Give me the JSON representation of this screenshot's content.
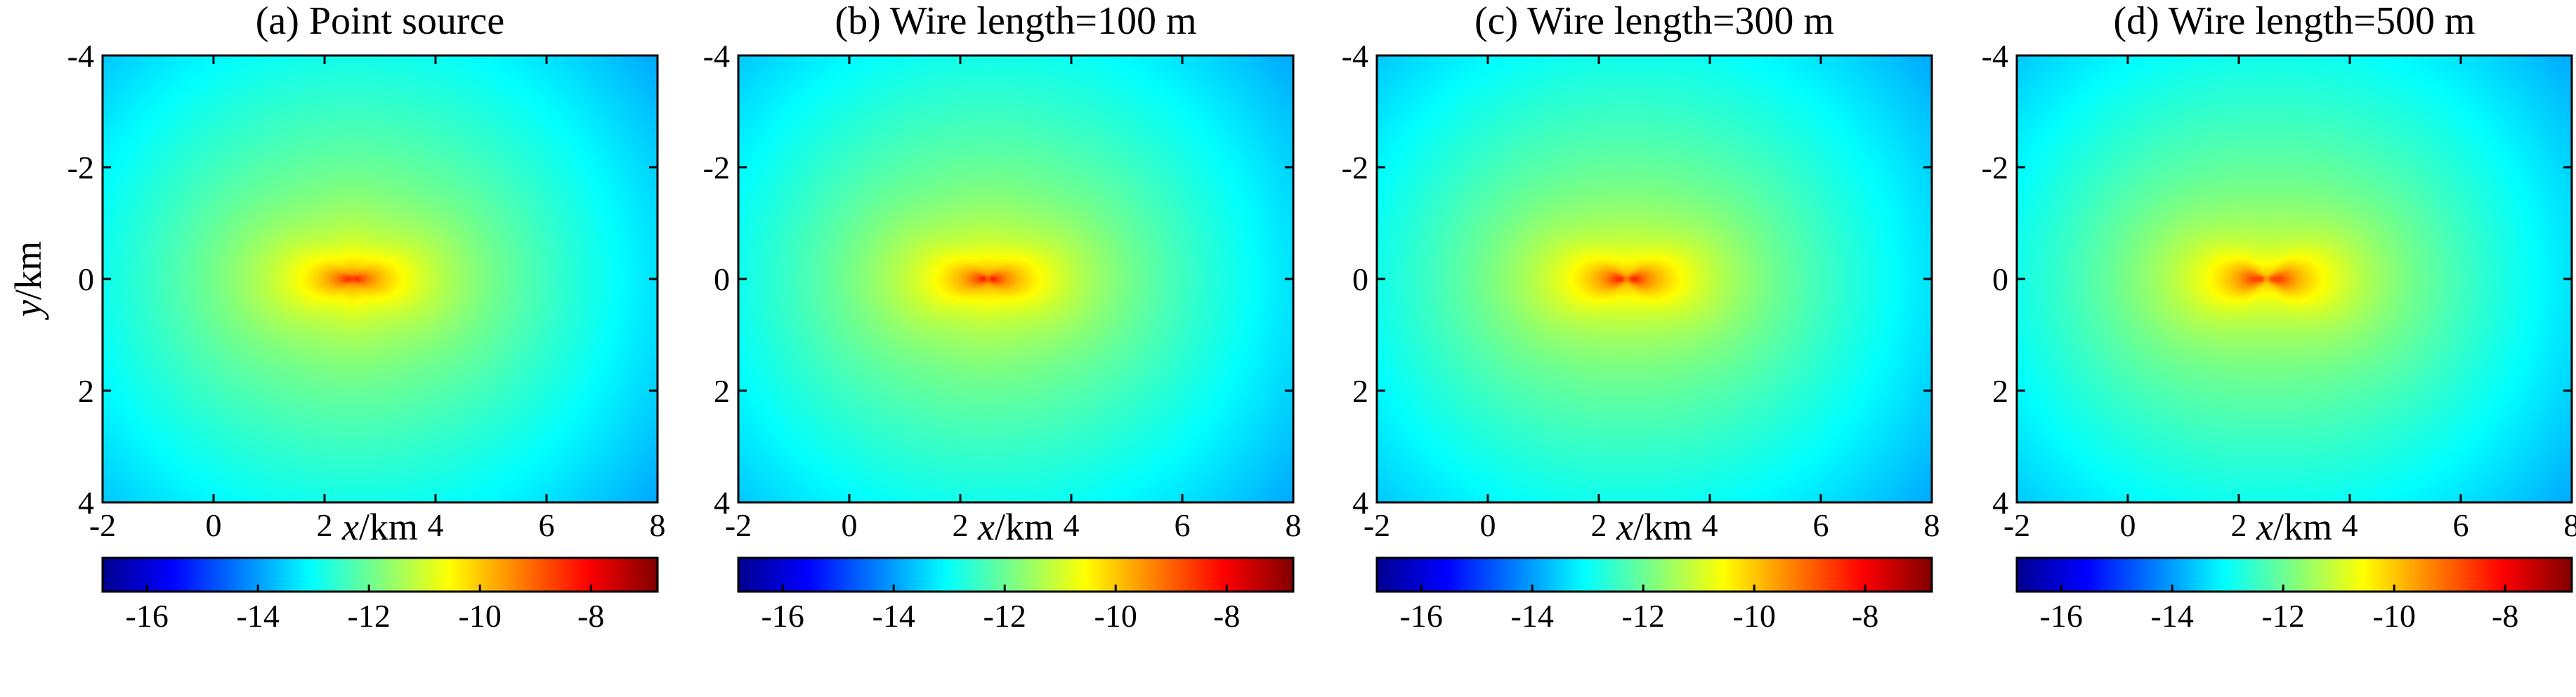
{
  "chart_data": {
    "type": "heatmap",
    "x_label": {
      "italic": "x",
      "unit": "/km"
    },
    "y_label": {
      "italic": "y",
      "unit": "/km"
    },
    "xlim": [
      -2,
      8
    ],
    "ylim": [
      -4,
      4
    ],
    "y_reversed": true,
    "x_ticks": [
      "-2",
      "0",
      "2",
      "4",
      "6",
      "8"
    ],
    "y_ticks": [
      "-4",
      "-2",
      "0",
      "2",
      "4"
    ],
    "source_center": [
      2.5,
      0
    ],
    "colormap": "jet",
    "colorbar": {
      "range": [
        -16.8,
        -6.8
      ],
      "ticks": [
        "-16",
        "-14",
        "-12",
        "-10",
        "-8"
      ]
    },
    "panels": [
      {
        "title": "(a) Point source",
        "wire_length_m": 0
      },
      {
        "title": "(b) Wire length=100 m",
        "wire_length_m": 100
      },
      {
        "title": "(c) Wire length=300 m",
        "wire_length_m": 300
      },
      {
        "title": "(d) Wire length=500 m",
        "wire_length_m": 500
      }
    ]
  }
}
